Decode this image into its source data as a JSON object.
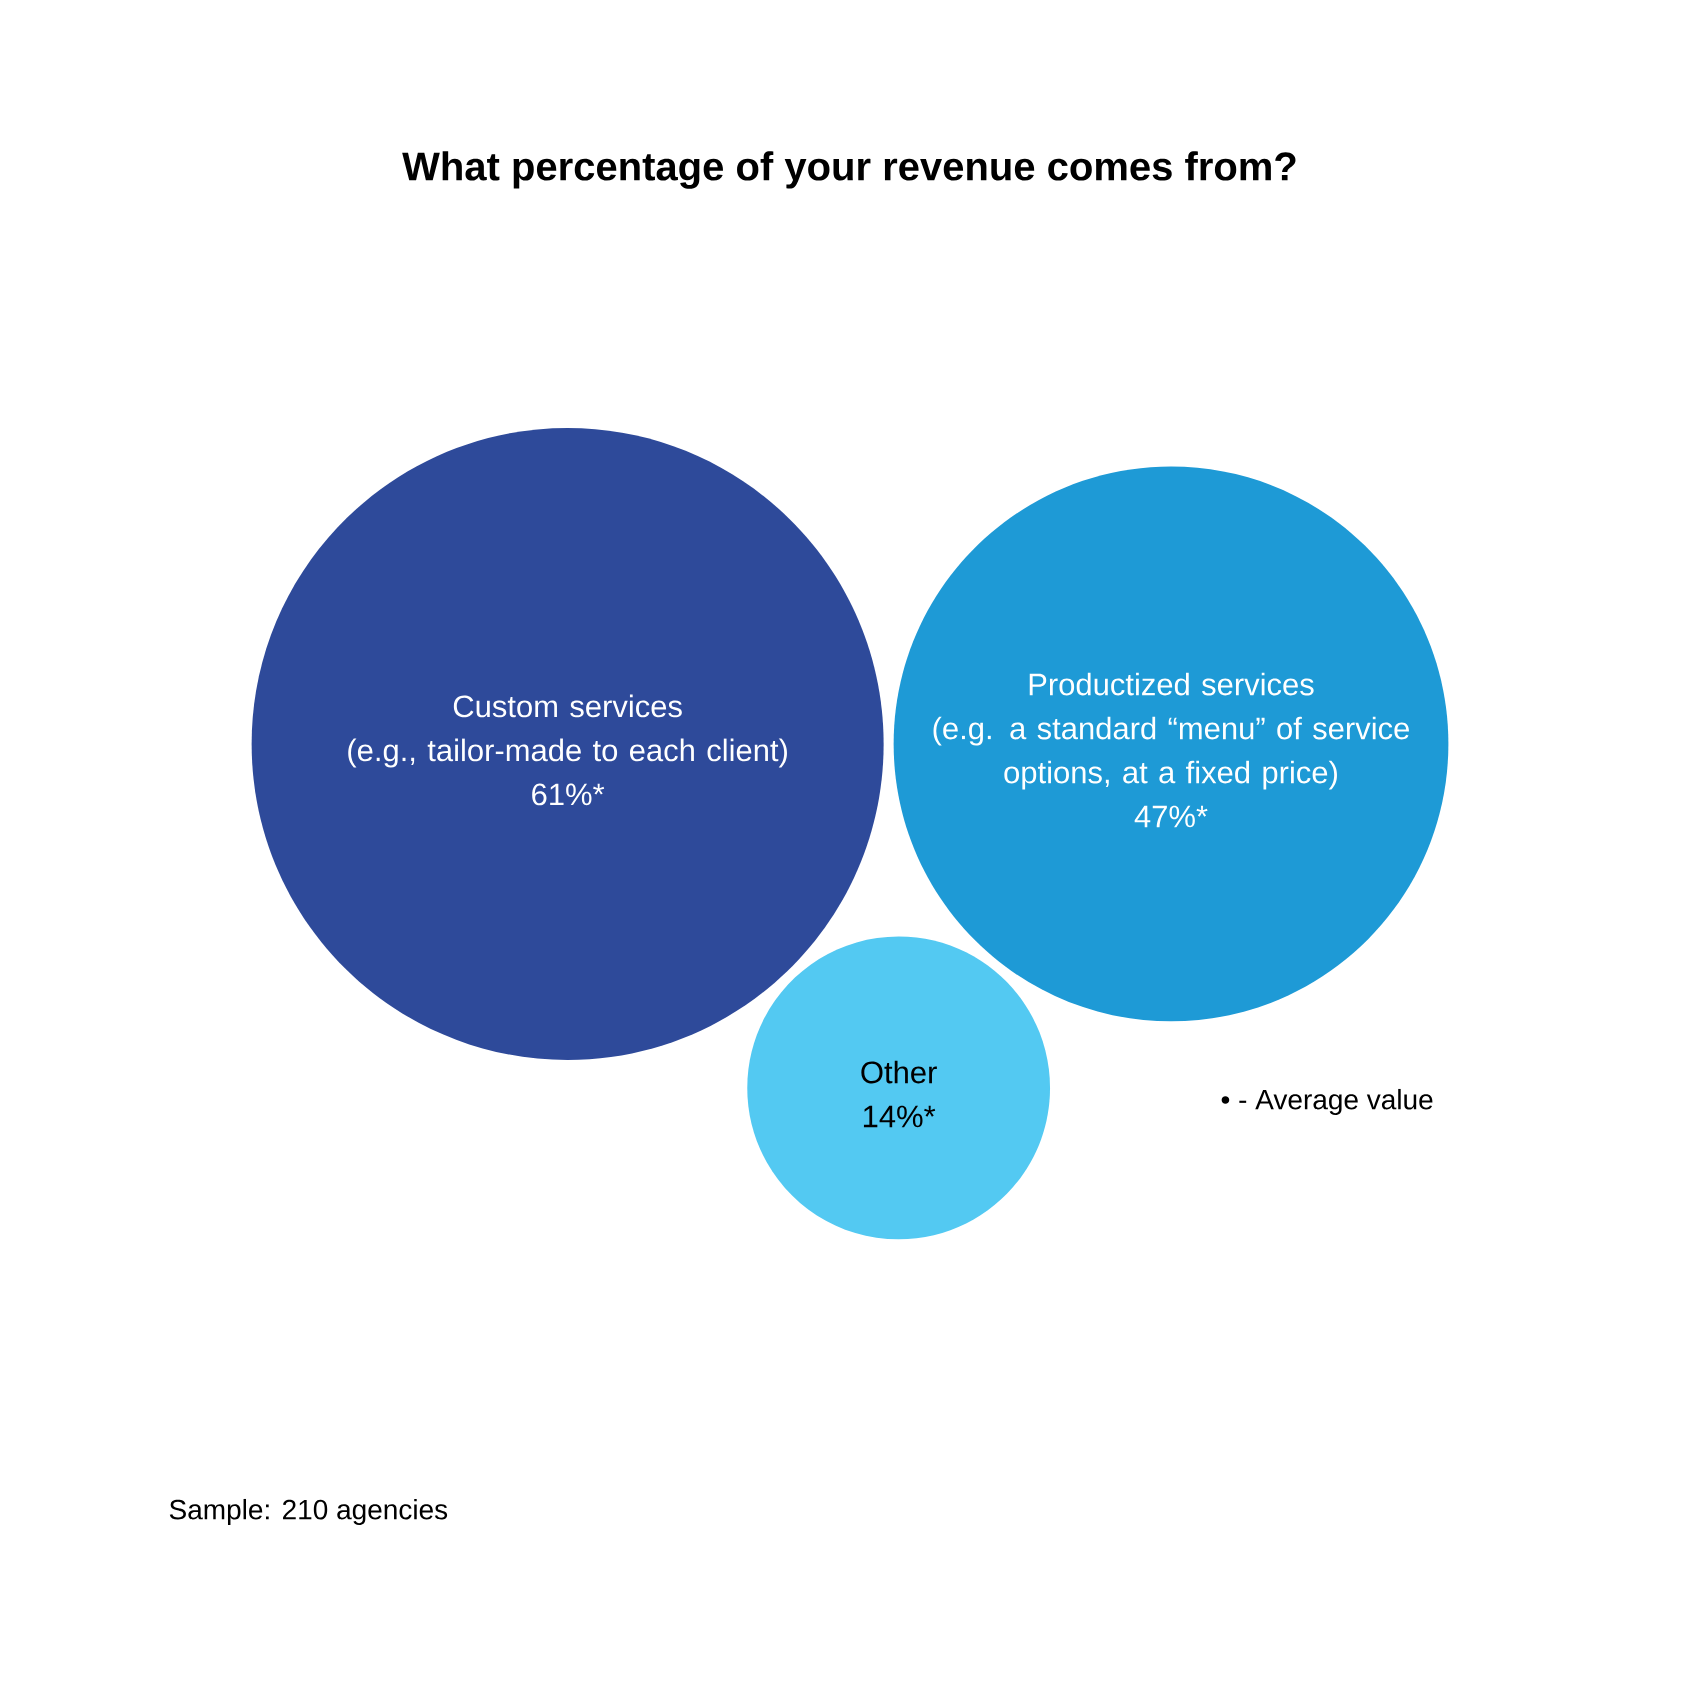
{
  "chart_data": {
    "type": "other",
    "title": "What percentage of your revenue comes from?",
    "categories": [
      "Custom services\n(e.g., tailor-made to each client)",
      "Productized services\n(e.g. a standard “menu” of service\noptions, at a fixed price)",
      "Other"
    ],
    "values": [
      61,
      47,
      14
    ],
    "value_labels": [
      "61%*",
      "47%*",
      "14%*"
    ],
    "colors": [
      "#2e4a9a",
      "#1e9ad6",
      "#53c9f2"
    ],
    "annotations": [
      "• - Average value",
      "Sample: 210 agencies"
    ]
  }
}
